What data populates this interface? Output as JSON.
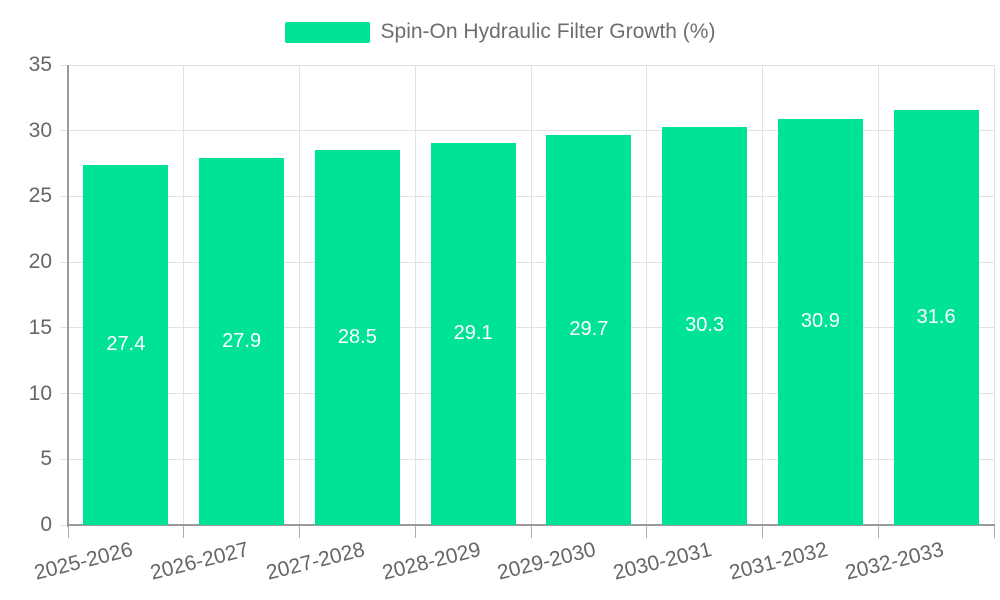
{
  "chart_data": {
    "type": "bar",
    "title": "",
    "legend": {
      "position": "top",
      "label": "Spin-On Hydraulic Filter Growth (%)"
    },
    "categories": [
      "2025-2026",
      "2026-2027",
      "2027-2028",
      "2028-2029",
      "2029-2030",
      "2030-2031",
      "2031-2032",
      "2032-2033"
    ],
    "series": [
      {
        "name": "Spin-On Hydraulic Filter Growth (%)",
        "values": [
          27.4,
          27.9,
          28.5,
          29.1,
          29.7,
          30.3,
          30.9,
          31.6
        ]
      }
    ],
    "bar_value_labels": [
      "27.4",
      "27.9",
      "28.5",
      "29.1",
      "29.7",
      "30.3",
      "30.9",
      "31.6"
    ],
    "xlabel": "",
    "ylabel": "",
    "ylim": [
      0,
      35
    ],
    "yticks": [
      0,
      5,
      10,
      15,
      20,
      25,
      30,
      35
    ],
    "grid": true,
    "colors": {
      "bar": "#00E396",
      "bar_label": "#FFFFFF",
      "axis_label": "#666666",
      "legend_label": "#6E6E6E",
      "gridline": "#E2E2E2",
      "axis_line": "#9A9A9A",
      "tick": "#ADADAD"
    }
  }
}
